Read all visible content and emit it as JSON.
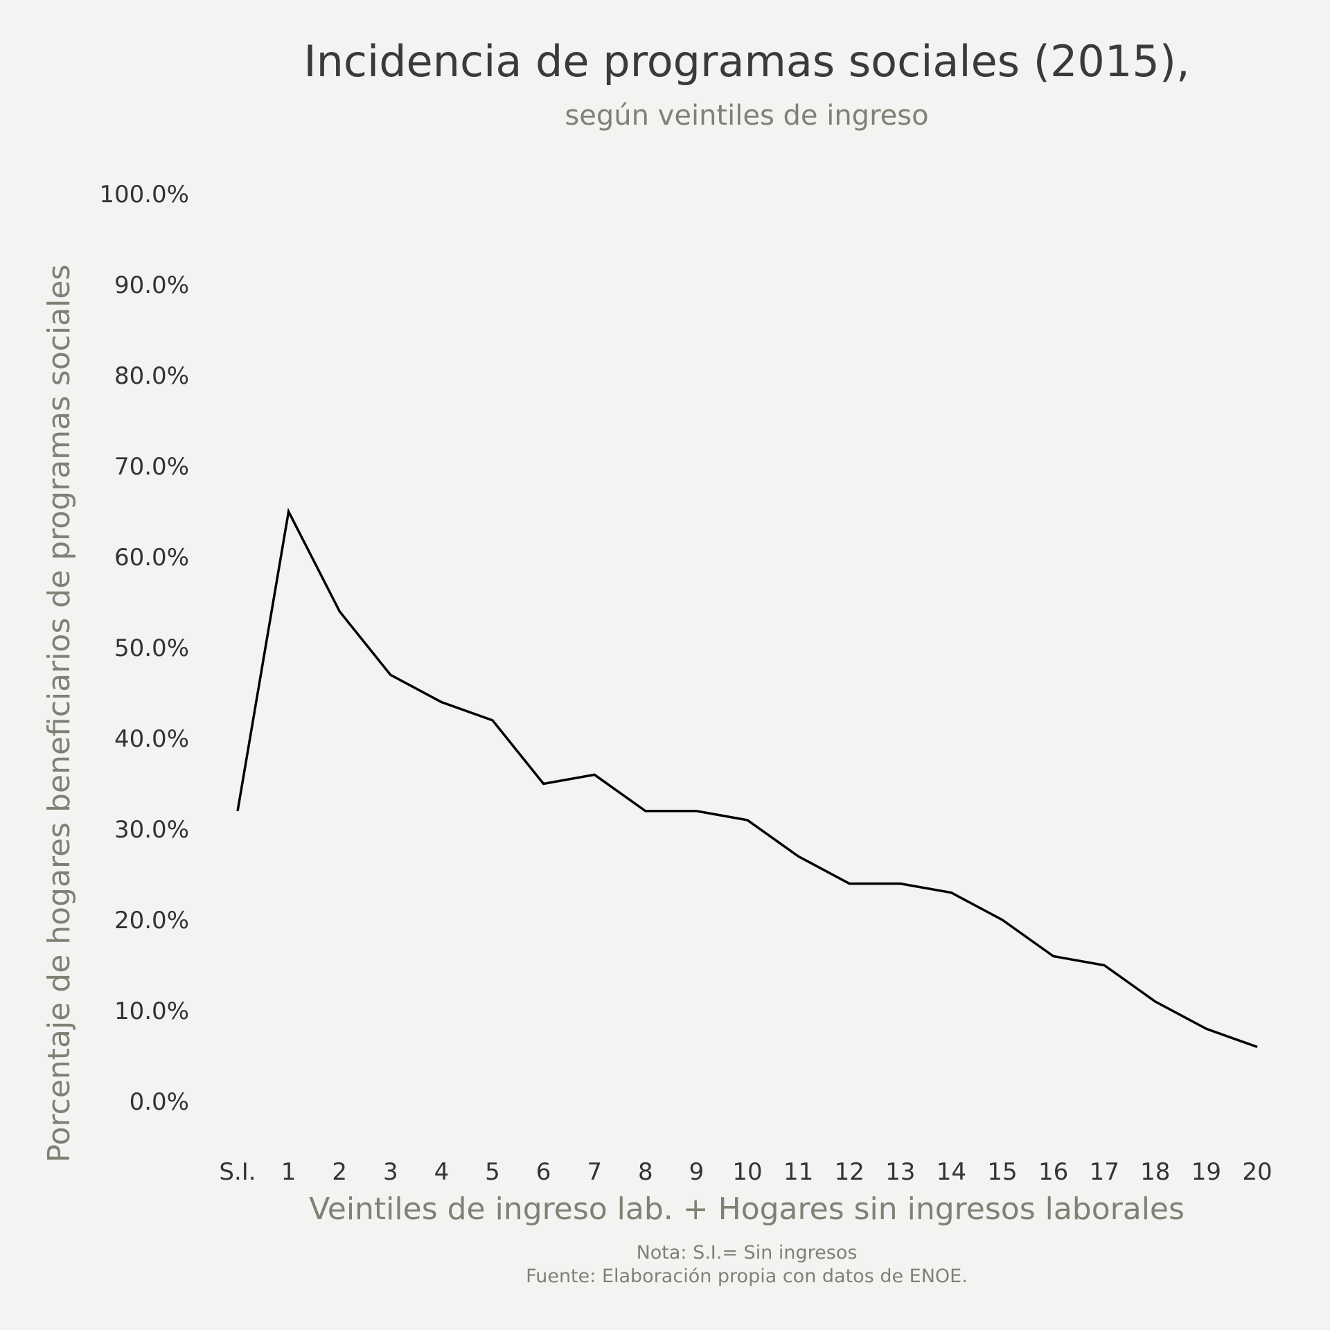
{
  "chart_data": {
    "type": "line",
    "title": "Incidencia de programas sociales (2015),",
    "subtitle": "según veintiles de ingreso",
    "xlabel": "Veintiles de ingreso lab. + Hogares sin ingresos laborales",
    "ylabel": "Porcentaje de hogares beneficiarios de programas sociales",
    "caption_line1": "Nota: S.I.= Sin ingresos",
    "caption_line2": "Fuente: Elaboración propia con datos de ENOE.",
    "categories": [
      "S.I.",
      "1",
      "2",
      "3",
      "4",
      "5",
      "6",
      "7",
      "8",
      "9",
      "10",
      "11",
      "12",
      "13",
      "14",
      "15",
      "16",
      "17",
      "18",
      "19",
      "20"
    ],
    "values": [
      32,
      65,
      54,
      47,
      44,
      42,
      35,
      36,
      32,
      32,
      31,
      27,
      24,
      24,
      23,
      20,
      16,
      15,
      11,
      8,
      6
    ],
    "ylim": [
      0,
      100
    ],
    "yticks": [
      "0.0%",
      "10.0%",
      "20.0%",
      "30.0%",
      "40.0%",
      "50.0%",
      "60.0%",
      "70.0%",
      "80.0%",
      "90.0%",
      "100.0%"
    ],
    "grid": false,
    "line_color": "#000000"
  }
}
